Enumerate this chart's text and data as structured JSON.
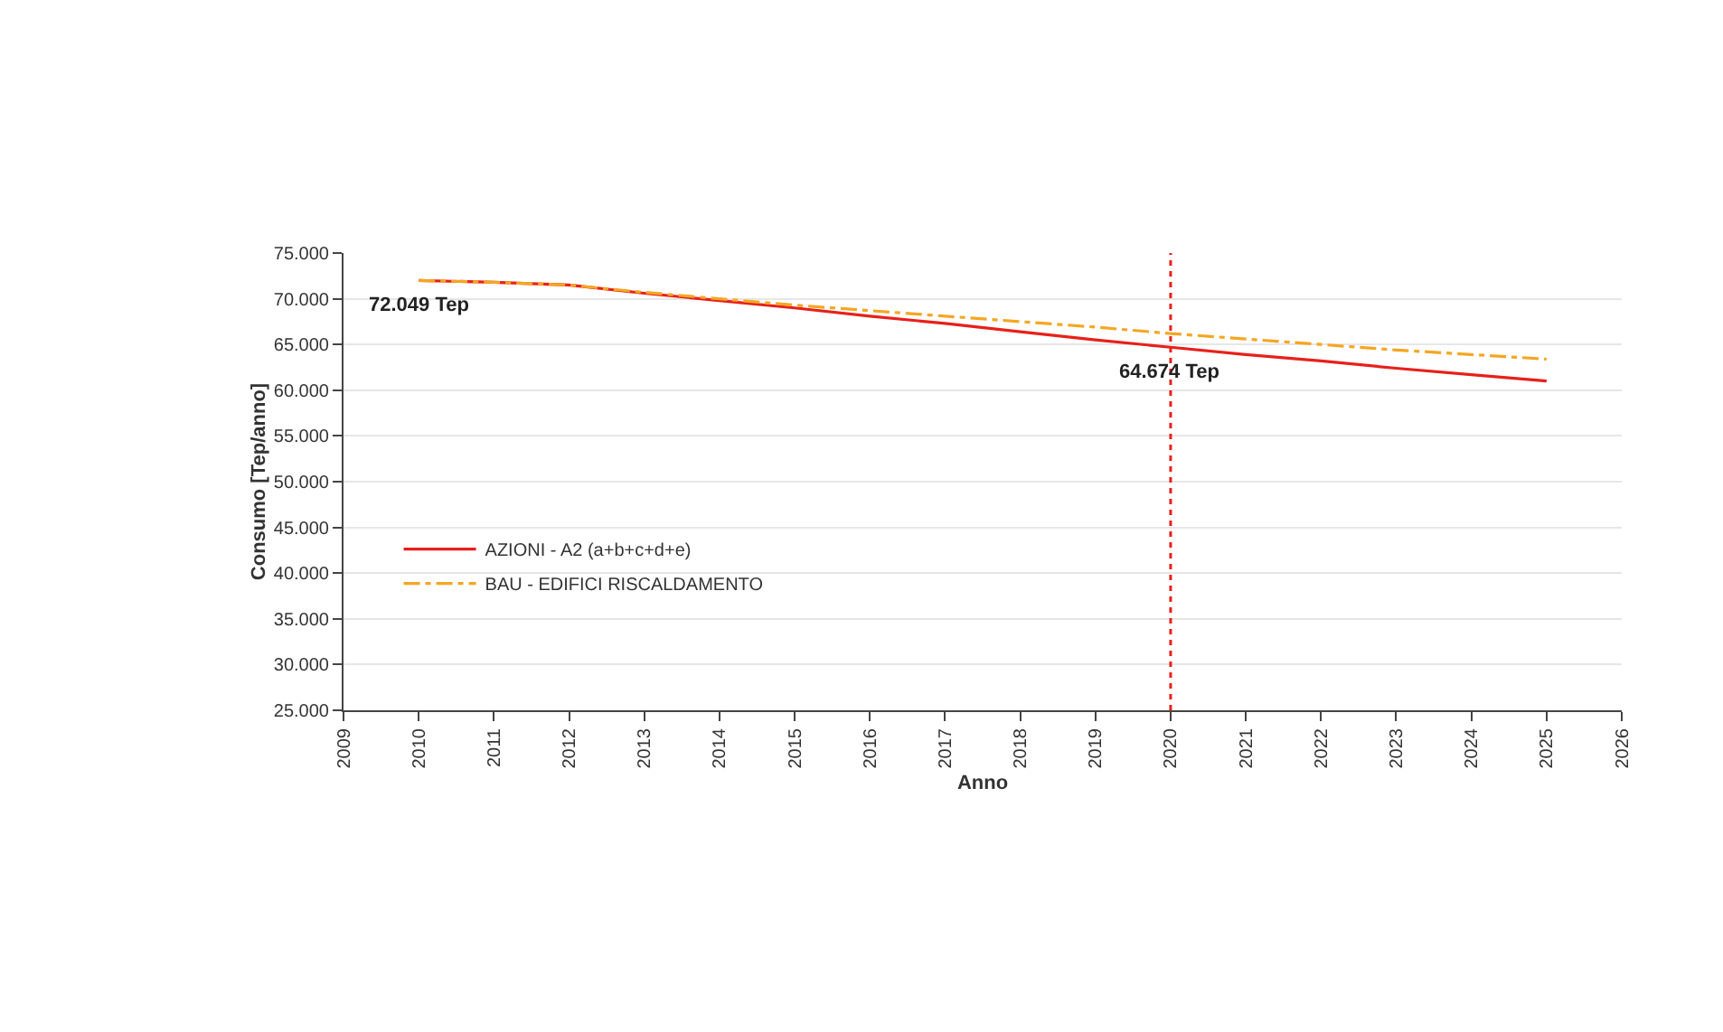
{
  "chart_data": {
    "type": "line",
    "xlabel": "Anno",
    "ylabel": "Consumo [Tep/anno]",
    "x": [
      2010,
      2011,
      2012,
      2013,
      2014,
      2015,
      2016,
      2017,
      2018,
      2019,
      2020,
      2021,
      2022,
      2023,
      2024,
      2025
    ],
    "series": [
      {
        "name": "AZIONI - A2 (a+b+c+d+e)",
        "color": "#e8201a",
        "line_style": "solid",
        "values": [
          72000,
          71800,
          71500,
          70600,
          69800,
          69000,
          68100,
          67300,
          66400,
          65500,
          64700,
          63900,
          63200,
          62400,
          61700,
          61000
        ]
      },
      {
        "name": "BAU - EDIFICI RISCALDAMENTO",
        "color": "#f5a623",
        "line_style": "dashed",
        "values": [
          72000,
          71800,
          71500,
          70700,
          70000,
          69300,
          68700,
          68100,
          67500,
          66900,
          66200,
          65600,
          65000,
          64400,
          63900,
          63400
        ]
      }
    ],
    "xlim": [
      2009,
      2026
    ],
    "xticks": [
      2009,
      2010,
      2011,
      2012,
      2013,
      2014,
      2015,
      2016,
      2017,
      2018,
      2019,
      2020,
      2021,
      2022,
      2023,
      2024,
      2025,
      2026
    ],
    "ylim": [
      25000,
      75000
    ],
    "yticks": [
      {
        "value": 25000,
        "label": "25.000"
      },
      {
        "value": 30000,
        "label": "30.000"
      },
      {
        "value": 35000,
        "label": "35.000"
      },
      {
        "value": 40000,
        "label": "40.000"
      },
      {
        "value": 45000,
        "label": "45.000"
      },
      {
        "value": 50000,
        "label": "50.000"
      },
      {
        "value": 55000,
        "label": "55.000"
      },
      {
        "value": 60000,
        "label": "60.000"
      },
      {
        "value": 65000,
        "label": "65.000"
      },
      {
        "value": 70000,
        "label": "70.000"
      },
      {
        "value": 75000,
        "label": "75.000"
      }
    ],
    "ref_lines": [
      {
        "axis": "x",
        "value": 2020,
        "color": "#e8201a",
        "line_style": "dotted"
      }
    ],
    "annotations": [
      {
        "text": "72.049 Tep",
        "x": 2010,
        "y": 72049
      },
      {
        "text": "64.674 Tep",
        "x": 2020,
        "y": 64674
      }
    ],
    "grid": "y",
    "legend": "bottom left",
    "marker": "none"
  }
}
